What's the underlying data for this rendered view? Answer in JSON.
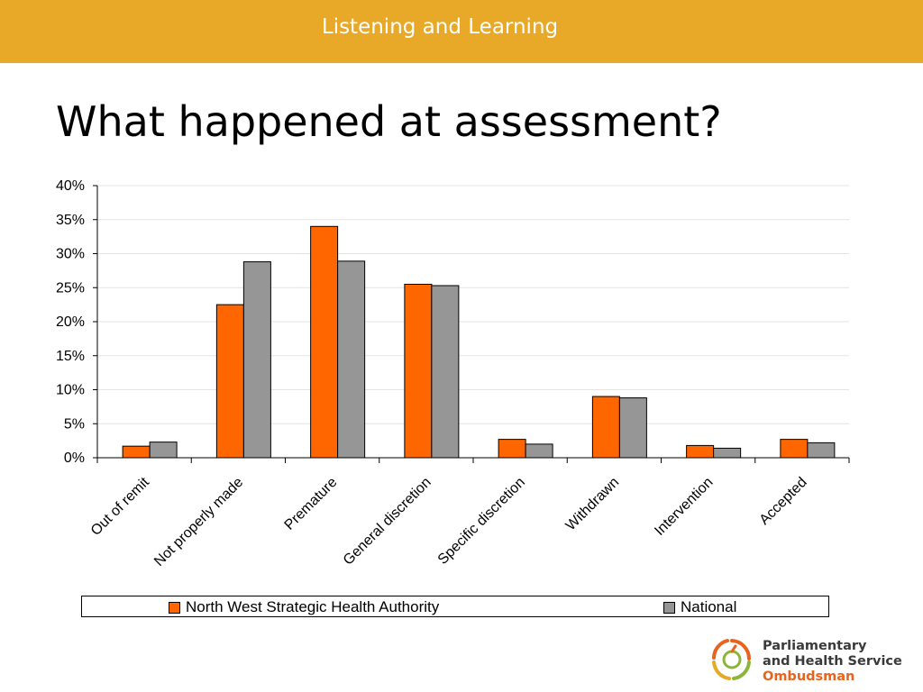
{
  "header": {
    "title": "Listening and Learning"
  },
  "slide": {
    "title": "What happened at assessment?"
  },
  "colors": {
    "banner": "#e8a828",
    "series_nw": "#ff6600",
    "series_national": "#969696"
  },
  "chart_data": {
    "type": "bar",
    "title": "",
    "xlabel": "",
    "ylabel": "",
    "ylim": [
      0,
      40
    ],
    "yticks": [
      "0%",
      "5%",
      "10%",
      "15%",
      "20%",
      "25%",
      "30%",
      "35%",
      "40%"
    ],
    "grid": true,
    "legend_position": "bottom",
    "categories": [
      "Out of remit",
      "Not properly made",
      "Premature",
      "General discretion",
      "Specific discretion",
      "Withdrawn",
      "Intervention",
      "Accepted"
    ],
    "series": [
      {
        "name": "North West Strategic Health Authority",
        "color": "#ff6600",
        "values": [
          1.7,
          22.5,
          34.0,
          25.5,
          2.7,
          9.0,
          1.8,
          2.7
        ]
      },
      {
        "name": "National",
        "color": "#969696",
        "values": [
          2.3,
          28.8,
          28.9,
          25.3,
          2.0,
          8.8,
          1.4,
          2.2
        ]
      }
    ]
  },
  "logo": {
    "icon": "ombudsman-logo-icon",
    "line1": "Parliamentary",
    "line2": "and Health Service",
    "line3": "Ombudsman"
  }
}
